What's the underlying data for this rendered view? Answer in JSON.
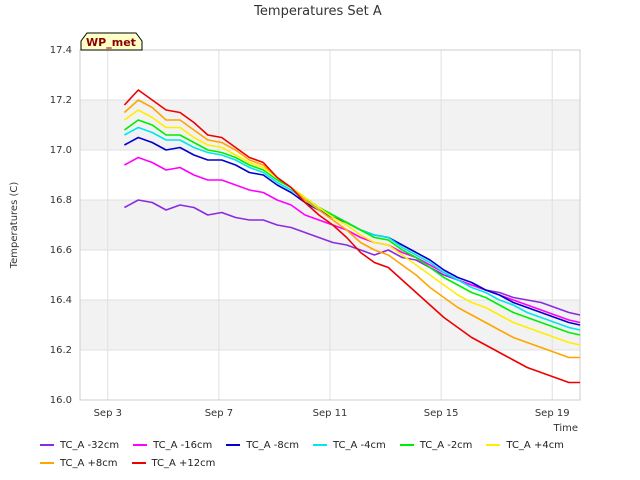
{
  "chart_data": {
    "type": "line",
    "title": "Temperatures Set A",
    "xlabel": "Time",
    "ylabel": "Temperatures (C)",
    "badge": "WP_met",
    "xlim": [
      2.0,
      20.0
    ],
    "ylim": [
      16.0,
      17.4
    ],
    "x_ticks": [
      {
        "x": 3,
        "label": "Sep 3"
      },
      {
        "x": 7,
        "label": "Sep 7"
      },
      {
        "x": 11,
        "label": "Sep 11"
      },
      {
        "x": 15,
        "label": "Sep 15"
      },
      {
        "x": 19,
        "label": "Sep 19"
      }
    ],
    "y_ticks": [
      16.0,
      16.2,
      16.4,
      16.6,
      16.8,
      17.0,
      17.2,
      17.4
    ],
    "grid": true,
    "legend_position": "bottom",
    "x": [
      3.6,
      4.1,
      4.6,
      5.1,
      5.6,
      6.1,
      6.6,
      7.1,
      7.6,
      8.1,
      8.6,
      9.1,
      9.6,
      10.1,
      10.6,
      11.1,
      11.6,
      12.1,
      12.6,
      13.1,
      13.6,
      14.1,
      14.6,
      15.1,
      15.6,
      16.1,
      16.6,
      17.1,
      17.6,
      18.1,
      18.6,
      19.1,
      19.6,
      20.0
    ],
    "series": [
      {
        "name": "TC_A -32cm",
        "color": "#8a2be2",
        "values": [
          16.77,
          16.8,
          16.79,
          16.76,
          16.78,
          16.77,
          16.74,
          16.75,
          16.73,
          16.72,
          16.72,
          16.7,
          16.69,
          16.67,
          16.65,
          16.63,
          16.62,
          16.6,
          16.58,
          16.6,
          16.57,
          16.56,
          16.53,
          16.5,
          16.48,
          16.46,
          16.44,
          16.43,
          16.41,
          16.4,
          16.39,
          16.37,
          16.35,
          16.34
        ]
      },
      {
        "name": "TC_A -16cm",
        "color": "#ff00ff",
        "values": [
          16.94,
          16.97,
          16.95,
          16.92,
          16.93,
          16.9,
          16.88,
          16.88,
          16.86,
          16.84,
          16.83,
          16.8,
          16.78,
          16.74,
          16.72,
          16.7,
          16.68,
          16.65,
          16.63,
          16.62,
          16.59,
          16.57,
          16.54,
          16.51,
          16.48,
          16.46,
          16.44,
          16.42,
          16.4,
          16.38,
          16.36,
          16.34,
          16.32,
          16.31
        ]
      },
      {
        "name": "TC_A -8cm",
        "color": "#0000cd",
        "values": [
          17.02,
          17.05,
          17.03,
          17.0,
          17.01,
          16.98,
          16.96,
          16.96,
          16.94,
          16.91,
          16.9,
          16.86,
          16.83,
          16.79,
          16.76,
          16.73,
          16.71,
          16.68,
          16.66,
          16.65,
          16.62,
          16.59,
          16.56,
          16.52,
          16.49,
          16.47,
          16.44,
          16.42,
          16.39,
          16.37,
          16.35,
          16.33,
          16.31,
          16.3
        ]
      },
      {
        "name": "TC_A -4cm",
        "color": "#00e5ee",
        "values": [
          17.06,
          17.09,
          17.07,
          17.04,
          17.04,
          17.01,
          16.99,
          16.98,
          16.96,
          16.93,
          16.91,
          16.87,
          16.84,
          16.8,
          16.77,
          16.74,
          16.71,
          16.68,
          16.66,
          16.65,
          16.61,
          16.58,
          16.55,
          16.51,
          16.48,
          16.45,
          16.43,
          16.4,
          16.38,
          16.35,
          16.33,
          16.31,
          16.29,
          16.28
        ]
      },
      {
        "name": "TC_A -2cm",
        "color": "#00ee00",
        "values": [
          17.08,
          17.12,
          17.1,
          17.06,
          17.06,
          17.03,
          17.0,
          16.99,
          16.97,
          16.94,
          16.92,
          16.88,
          16.85,
          16.81,
          16.77,
          16.74,
          16.71,
          16.68,
          16.65,
          16.64,
          16.6,
          16.57,
          16.53,
          16.49,
          16.46,
          16.43,
          16.41,
          16.38,
          16.35,
          16.33,
          16.31,
          16.29,
          16.27,
          16.26
        ]
      },
      {
        "name": "TC_A +4cm",
        "color": "#ffee00",
        "values": [
          17.12,
          17.16,
          17.13,
          17.09,
          17.09,
          17.05,
          17.02,
          17.01,
          16.98,
          16.95,
          16.93,
          16.89,
          16.85,
          16.81,
          16.77,
          16.73,
          16.7,
          16.66,
          16.63,
          16.62,
          16.58,
          16.54,
          16.5,
          16.46,
          16.42,
          16.39,
          16.37,
          16.34,
          16.31,
          16.29,
          16.27,
          16.25,
          16.23,
          16.22
        ]
      },
      {
        "name": "TC_A +8cm",
        "color": "#ffa500",
        "values": [
          17.15,
          17.2,
          17.17,
          17.12,
          17.12,
          17.08,
          17.04,
          17.03,
          17.0,
          16.96,
          16.94,
          16.89,
          16.85,
          16.8,
          16.76,
          16.72,
          16.68,
          16.63,
          16.6,
          16.58,
          16.54,
          16.5,
          16.45,
          16.41,
          16.37,
          16.34,
          16.31,
          16.28,
          16.25,
          16.23,
          16.21,
          16.19,
          16.17,
          16.17
        ]
      },
      {
        "name": "TC_A +12cm",
        "color": "#ee0000",
        "values": [
          17.18,
          17.24,
          17.2,
          17.16,
          17.15,
          17.11,
          17.06,
          17.05,
          17.01,
          16.97,
          16.95,
          16.89,
          16.85,
          16.79,
          16.74,
          16.7,
          16.65,
          16.59,
          16.55,
          16.53,
          16.48,
          16.43,
          16.38,
          16.33,
          16.29,
          16.25,
          16.22,
          16.19,
          16.16,
          16.13,
          16.11,
          16.09,
          16.07,
          16.07
        ]
      }
    ]
  }
}
